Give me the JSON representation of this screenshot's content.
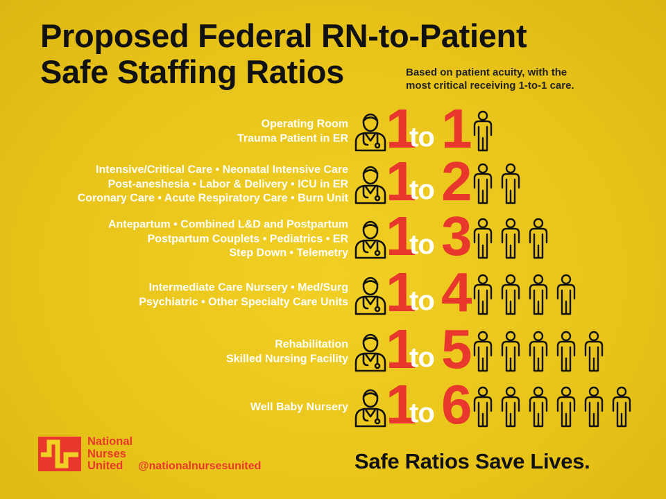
{
  "title": {
    "line1": "Proposed Federal RN-to-Patient",
    "line2": "Safe Staffing Ratios"
  },
  "subtitle": {
    "line1": "Based on patient acuity, with the",
    "line2": "most critical receiving 1-to-1 care."
  },
  "connector": "to",
  "ratios": [
    {
      "nurses": "1",
      "patients": "1",
      "patient_count": 1,
      "units": [
        "Operating Room",
        "Trauma Patient in ER"
      ]
    },
    {
      "nurses": "1",
      "patients": "2",
      "patient_count": 2,
      "units": [
        "Intensive/Critical Care • Neonatal Intensive Care",
        "Post-aneshesia • Labor & Delivery • ICU in ER",
        "Coronary Care • Acute Respiratory Care • Burn Unit"
      ]
    },
    {
      "nurses": "1",
      "patients": "3",
      "patient_count": 3,
      "units": [
        "Antepartum  • Combined L&D and Postpartum",
        "Postpartum Couplets • Pediatrics • ER",
        "Step Down • Telemetry"
      ]
    },
    {
      "nurses": "1",
      "patients": "4",
      "patient_count": 4,
      "units": [
        "Intermediate Care Nursery • Med/Surg",
        "Psychiatric • Other Specialty Care Units"
      ]
    },
    {
      "nurses": "1",
      "patients": "5",
      "patient_count": 5,
      "units": [
        "Rehabilitation",
        "Skilled Nursing Facility"
      ]
    },
    {
      "nurses": "1",
      "patients": "6",
      "patient_count": 6,
      "units": [
        "Well Baby Nursery"
      ]
    }
  ],
  "footer": {
    "org_line1": "National",
    "org_line2": "Nurses",
    "org_line3": "United",
    "handle": "@nationalnursesunited",
    "slogan": "Safe Ratios Save Lives."
  },
  "colors": {
    "background": "#e8c41a",
    "accent_red": "#e8372c",
    "text_dark": "#111111",
    "text_light": "#ffffff"
  },
  "icons": {
    "nurse": "nurse-icon",
    "patient": "patient-icon",
    "logo": "nnu-logo-icon"
  }
}
